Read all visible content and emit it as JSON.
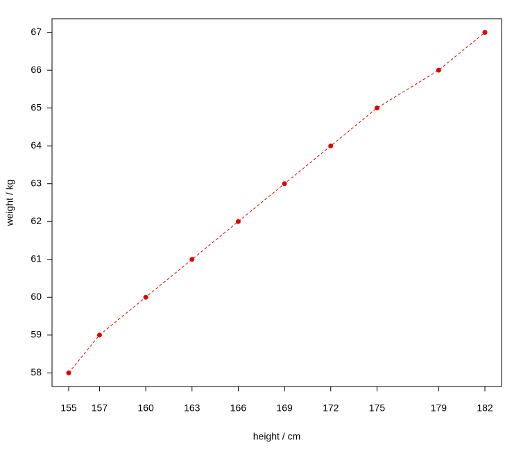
{
  "chart_data": {
    "type": "line",
    "xlabel": "height / cm",
    "ylabel": "weight / kg",
    "x": [
      155,
      157,
      160,
      163,
      166,
      169,
      172,
      175,
      179,
      182
    ],
    "values": [
      58,
      59,
      60,
      61,
      62,
      63,
      64,
      65,
      66,
      67
    ],
    "color": "#e00000",
    "line_style": "dashed",
    "markers": true,
    "xlim": [
      153.92,
      183.08
    ],
    "ylim": [
      57.64,
      67.36
    ],
    "xticks": [
      155,
      157,
      160,
      163,
      166,
      169,
      172,
      175,
      179,
      182
    ],
    "yticks": [
      58,
      59,
      60,
      61,
      62,
      63,
      64,
      65,
      66,
      67
    ]
  }
}
